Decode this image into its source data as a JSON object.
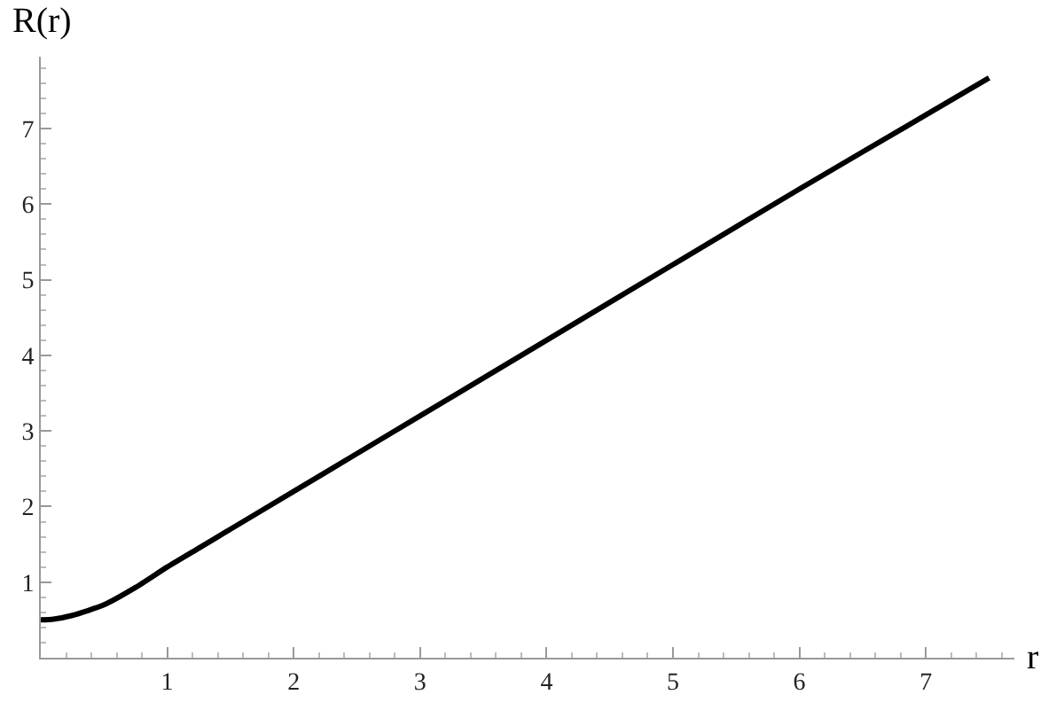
{
  "chart_data": {
    "type": "line",
    "xlabel": "r",
    "ylabel": "R(r)",
    "x": [
      0,
      0.1,
      0.25,
      0.5,
      0.75,
      1,
      1.25,
      1.5,
      2,
      2.5,
      3,
      4,
      5,
      6,
      7,
      7.5
    ],
    "series": [
      {
        "color": "#000000",
        "values": [
          0.5,
          0.51,
          0.56,
          0.7,
          0.93,
          1.2,
          1.45,
          1.7,
          2.2,
          2.7,
          3.2,
          4.2,
          5.2,
          6.2,
          7.18,
          7.67
        ]
      }
    ],
    "xlim": [
      0,
      7.7
    ],
    "ylim": [
      0,
      7.95
    ],
    "xticks": [
      1,
      2,
      3,
      4,
      5,
      6,
      7
    ],
    "yticks": [
      1,
      2,
      3,
      4,
      5,
      6,
      7
    ],
    "marker": "none",
    "line_style": "solid"
  }
}
